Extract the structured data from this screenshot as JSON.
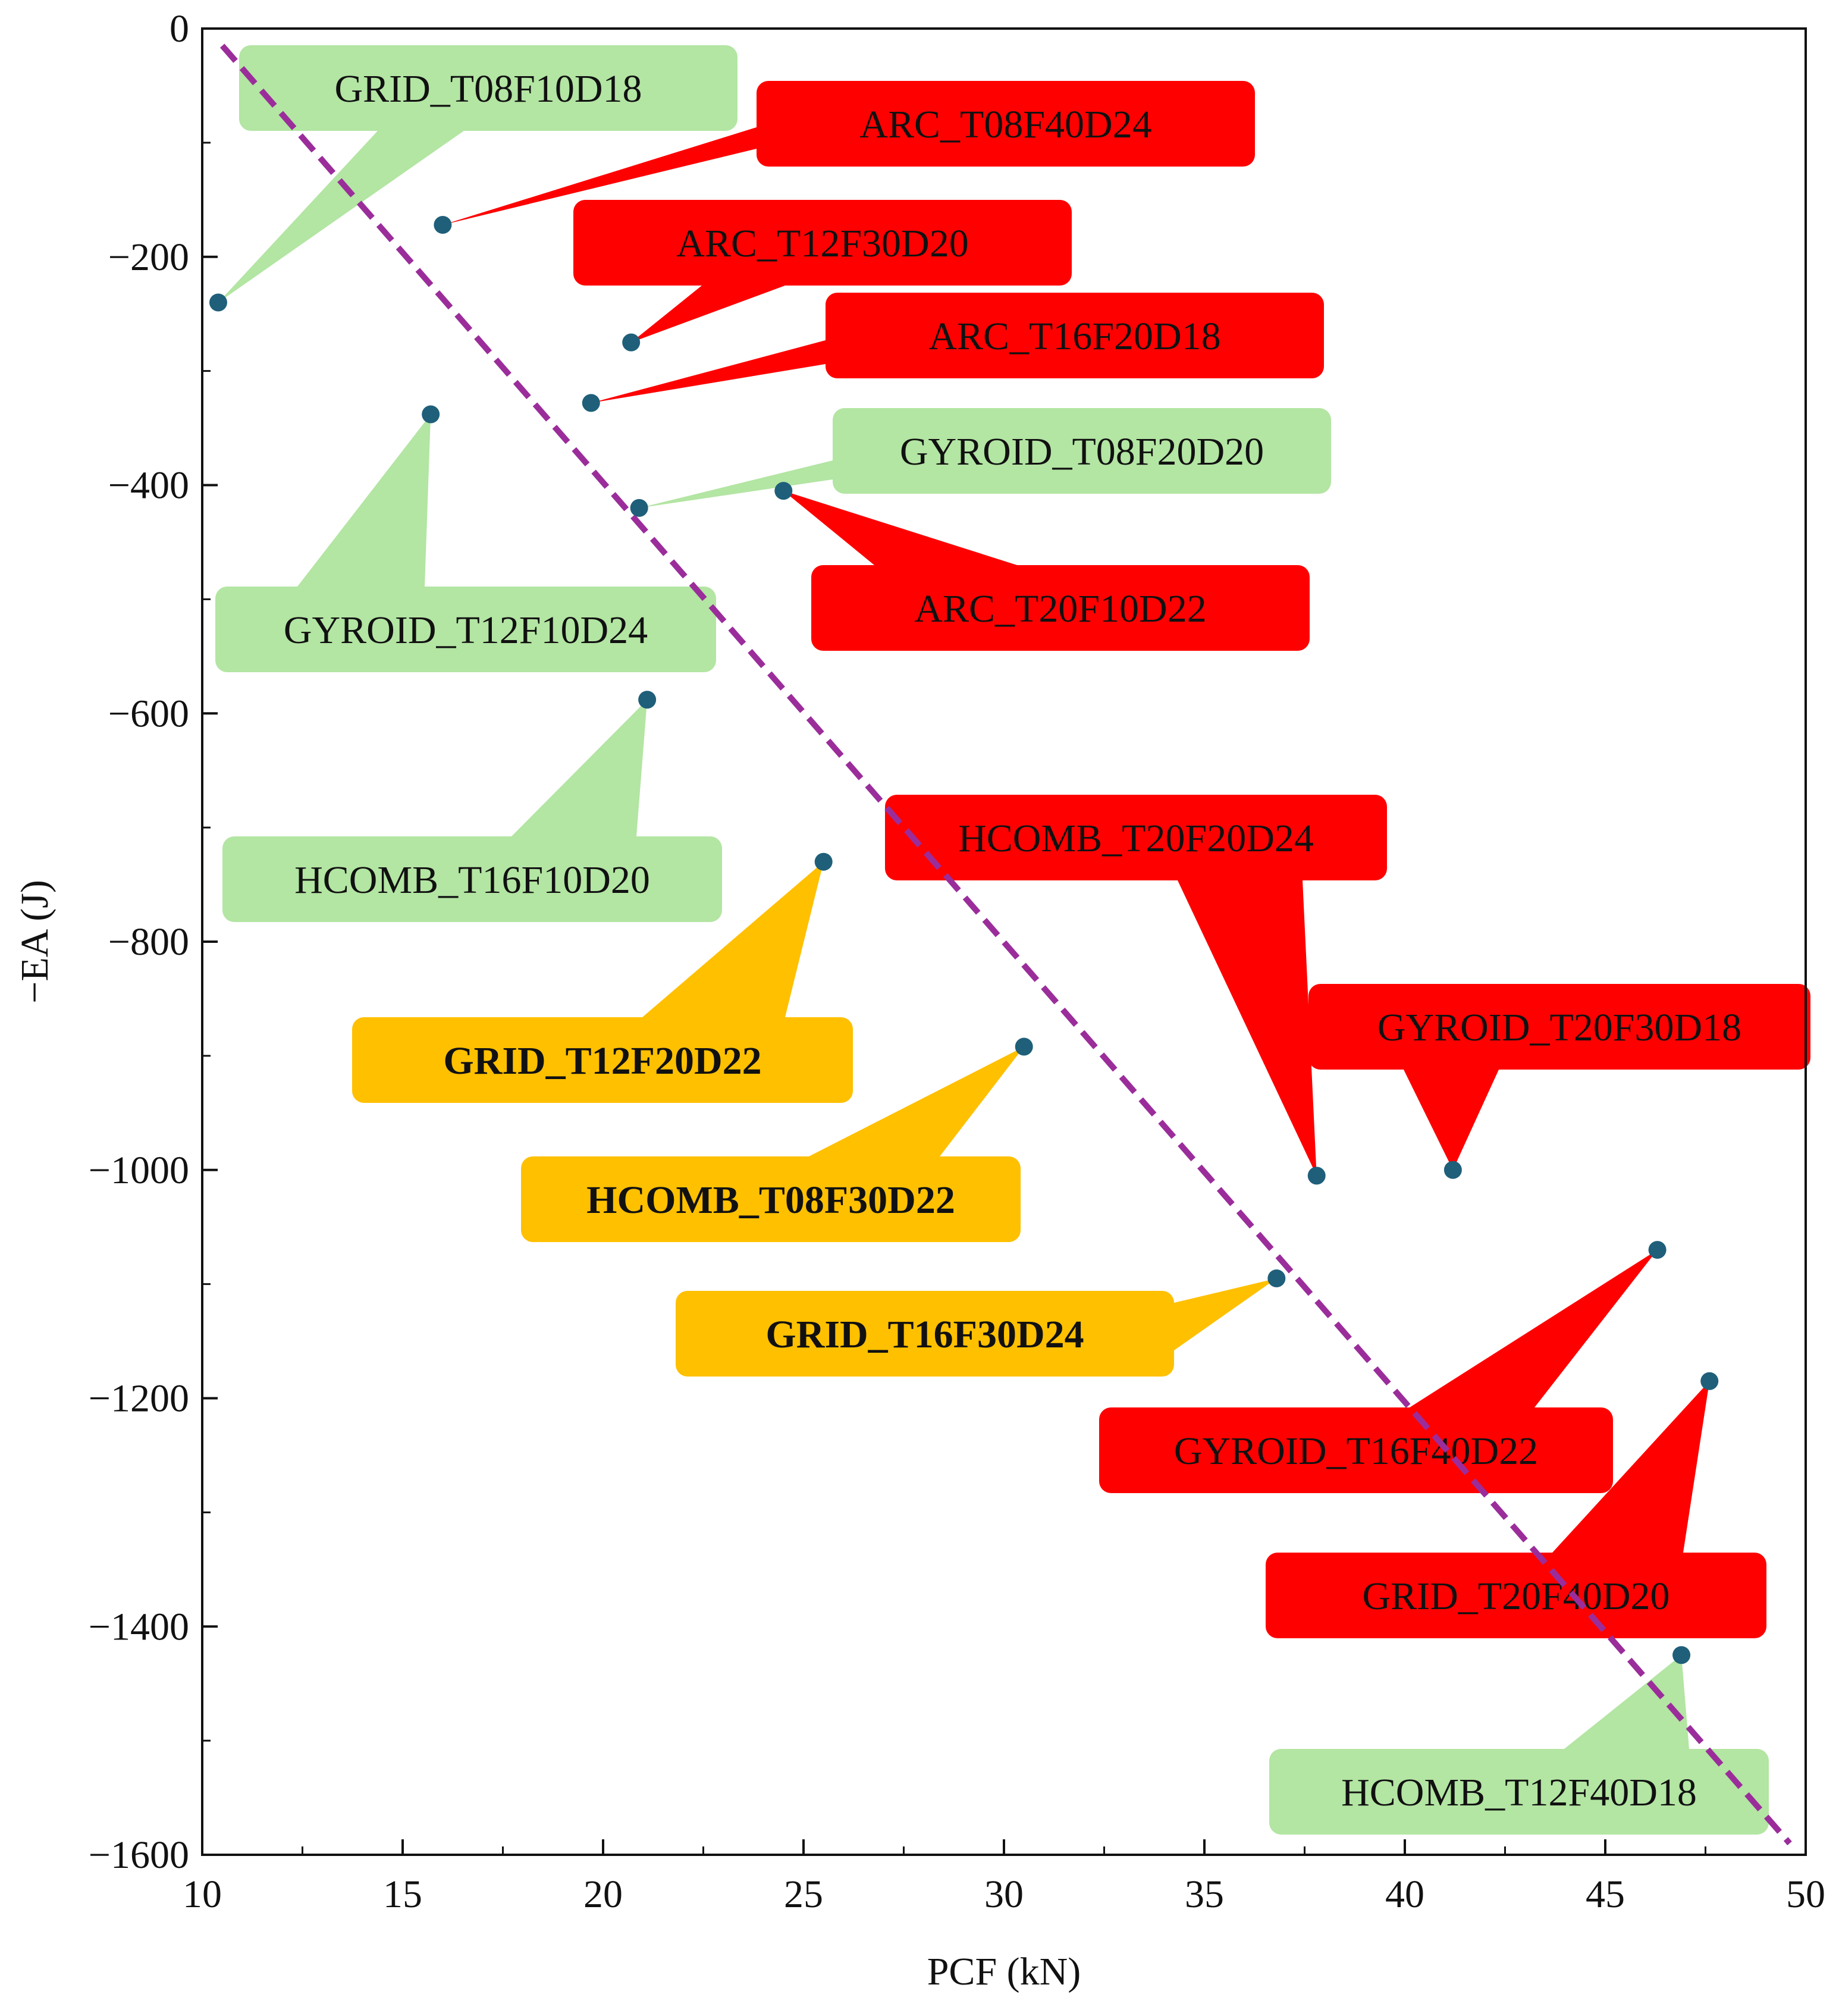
{
  "chart_data": {
    "type": "scatter",
    "xlabel": "PCF (kN)",
    "ylabel": "−EA (J)",
    "xlim": [
      10,
      50
    ],
    "ylim": [
      -1600,
      0
    ],
    "xticks": [
      10,
      15,
      20,
      25,
      30,
      35,
      40,
      45,
      50
    ],
    "xtick_labels": [
      "10",
      "15",
      "20",
      "25",
      "30",
      "35",
      "40",
      "45",
      "50"
    ],
    "yticks": [
      0,
      -200,
      -400,
      -600,
      -800,
      -1000,
      -1200,
      -1400,
      -1600
    ],
    "ytick_labels": [
      "0",
      "−200",
      "−400",
      "−600",
      "−800",
      "−1000",
      "−1200",
      "−1400",
      "−1600"
    ],
    "grid": false,
    "point_color": "#1f5f7a",
    "category_colors": {
      "green": "#b3e5a3",
      "red": "#ff0000",
      "orange": "#ffc000"
    },
    "trendline": {
      "style": "dashed",
      "color": "#9b2d9b",
      "x": [
        10.5,
        49.6
      ],
      "y": [
        -15,
        -1590
      ]
    },
    "points": [
      {
        "label": "GRID_T08F10D18",
        "x": 10.4,
        "y": -240,
        "category": "green"
      },
      {
        "label": "ARC_T08F40D24",
        "x": 16.0,
        "y": -172,
        "category": "red"
      },
      {
        "label": "ARC_T12F30D20",
        "x": 20.7,
        "y": -275,
        "category": "red"
      },
      {
        "label": "ARC_T16F20D18",
        "x": 19.7,
        "y": -328,
        "category": "red"
      },
      {
        "label": "GYROID_T12F10D24",
        "x": 15.7,
        "y": -338,
        "category": "green"
      },
      {
        "label": "GYROID_T08F20D20",
        "x": 20.9,
        "y": -420,
        "category": "green"
      },
      {
        "label": "ARC_T20F10D22",
        "x": 24.5,
        "y": -405,
        "category": "red"
      },
      {
        "label": "HCOMB_T16F10D20",
        "x": 21.1,
        "y": -588,
        "category": "green"
      },
      {
        "label": "GRID_T12F20D22",
        "x": 25.5,
        "y": -730,
        "category": "orange"
      },
      {
        "label": "HCOMB_T20F20D24",
        "x": 37.8,
        "y": -1005,
        "category": "red"
      },
      {
        "label": "GYROID_T20F30D18",
        "x": 41.2,
        "y": -1000,
        "category": "red"
      },
      {
        "label": "HCOMB_T08F30D22",
        "x": 30.5,
        "y": -892,
        "category": "orange"
      },
      {
        "label": "GRID_T16F30D24",
        "x": 36.8,
        "y": -1095,
        "category": "orange"
      },
      {
        "label": "GYROID_T16F40D22",
        "x": 46.3,
        "y": -1070,
        "category": "red"
      },
      {
        "label": "GRID_T20F40D20",
        "x": 47.6,
        "y": -1185,
        "category": "red"
      },
      {
        "label": "HCOMB_T12F40D18",
        "x": 46.9,
        "y": -1425,
        "category": "green"
      }
    ]
  }
}
